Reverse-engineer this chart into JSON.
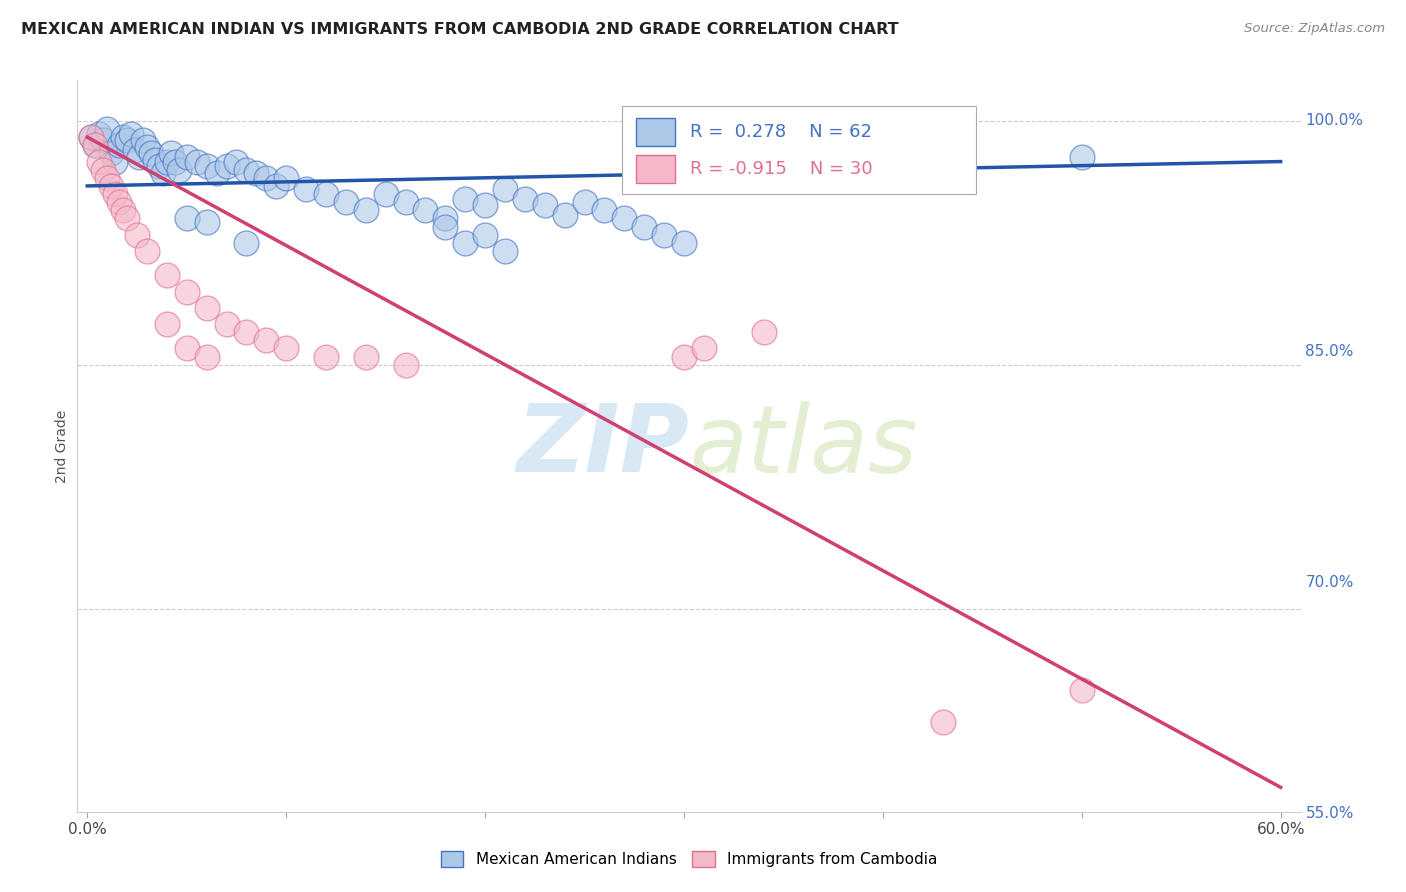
{
  "title": "MEXICAN AMERICAN INDIAN VS IMMIGRANTS FROM CAMBODIA 2ND GRADE CORRELATION CHART",
  "source": "Source: ZipAtlas.com",
  "ylabel": "2nd Grade",
  "xlim": [
    -0.005,
    0.61
  ],
  "ylim": [
    0.575,
    1.025
  ],
  "xtick_positions": [
    0.0,
    0.1,
    0.2,
    0.3,
    0.4,
    0.5,
    0.6
  ],
  "xtick_labels": [
    "0.0%",
    "",
    "",
    "",
    "",
    "",
    "60.0%"
  ],
  "yticks_right": [
    0.55,
    0.7,
    0.85,
    1.0
  ],
  "ytick_labels_right": [
    "55.0%",
    "70.0%",
    "85.0%",
    "100.0%"
  ],
  "blue_R": 0.278,
  "blue_N": 62,
  "pink_R": -0.915,
  "pink_N": 30,
  "blue_fill": "#aec8e8",
  "blue_edge": "#4472c4",
  "pink_fill": "#f4b8c8",
  "pink_edge": "#e07090",
  "blue_line_color": "#2255aa",
  "pink_line_color": "#d04070",
  "watermark_zip": "ZIP",
  "watermark_atlas": "atlas",
  "legend_label_blue": "Mexican American Indians",
  "legend_label_pink": "Immigrants from Cambodia",
  "blue_scatter_x": [
    0.002,
    0.004,
    0.006,
    0.008,
    0.01,
    0.012,
    0.014,
    0.016,
    0.018,
    0.02,
    0.022,
    0.024,
    0.026,
    0.028,
    0.03,
    0.032,
    0.034,
    0.036,
    0.038,
    0.04,
    0.042,
    0.044,
    0.046,
    0.05,
    0.055,
    0.06,
    0.065,
    0.07,
    0.075,
    0.08,
    0.085,
    0.09,
    0.095,
    0.1,
    0.11,
    0.12,
    0.13,
    0.14,
    0.15,
    0.16,
    0.17,
    0.18,
    0.19,
    0.2,
    0.21,
    0.22,
    0.23,
    0.24,
    0.25,
    0.26,
    0.27,
    0.28,
    0.29,
    0.3,
    0.18,
    0.19,
    0.2,
    0.21,
    0.05,
    0.06,
    0.5,
    0.08
  ],
  "blue_scatter_y": [
    0.99,
    0.985,
    0.992,
    0.988,
    0.995,
    0.98,
    0.975,
    0.985,
    0.99,
    0.988,
    0.992,
    0.982,
    0.978,
    0.988,
    0.984,
    0.98,
    0.976,
    0.972,
    0.968,
    0.975,
    0.98,
    0.975,
    0.97,
    0.978,
    0.975,
    0.972,
    0.968,
    0.972,
    0.975,
    0.97,
    0.968,
    0.965,
    0.96,
    0.965,
    0.958,
    0.955,
    0.95,
    0.945,
    0.955,
    0.95,
    0.945,
    0.94,
    0.952,
    0.948,
    0.958,
    0.952,
    0.948,
    0.942,
    0.95,
    0.945,
    0.94,
    0.935,
    0.93,
    0.925,
    0.935,
    0.925,
    0.93,
    0.92,
    0.94,
    0.938,
    0.978,
    0.925
  ],
  "pink_scatter_x": [
    0.002,
    0.004,
    0.006,
    0.008,
    0.01,
    0.012,
    0.014,
    0.016,
    0.018,
    0.02,
    0.025,
    0.03,
    0.04,
    0.05,
    0.06,
    0.07,
    0.08,
    0.09,
    0.1,
    0.12,
    0.14,
    0.16,
    0.04,
    0.05,
    0.06,
    0.3,
    0.31,
    0.34,
    0.43,
    0.5
  ],
  "pink_scatter_y": [
    0.99,
    0.985,
    0.975,
    0.97,
    0.965,
    0.96,
    0.955,
    0.95,
    0.945,
    0.94,
    0.93,
    0.92,
    0.905,
    0.895,
    0.885,
    0.875,
    0.87,
    0.865,
    0.86,
    0.855,
    0.855,
    0.85,
    0.875,
    0.86,
    0.855,
    0.855,
    0.86,
    0.87,
    0.63,
    0.65
  ],
  "blue_trend_x": [
    0.0,
    0.6
  ],
  "blue_trend_y": [
    0.96,
    0.975
  ],
  "pink_trend_x": [
    0.0,
    0.6
  ],
  "pink_trend_y": [
    0.99,
    0.59
  ]
}
